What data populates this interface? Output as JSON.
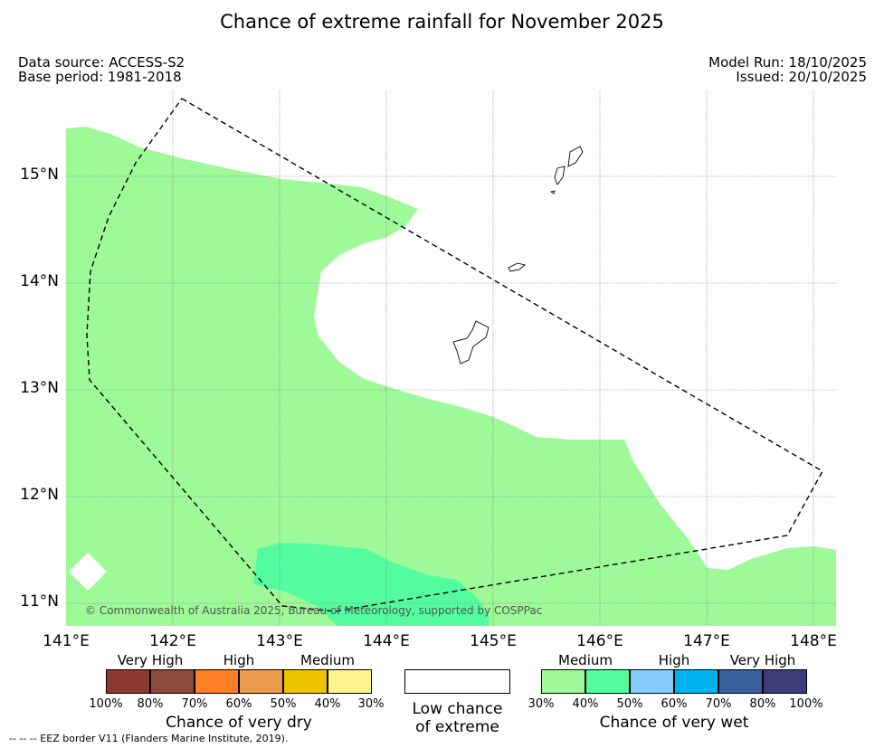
{
  "title": "Chance of extreme rainfall for November 2025",
  "meta": {
    "data_source": "Data source: ACCESS-S2",
    "base_period": "Base period: 1981-2018",
    "model_run": "Model Run: 18/10/2025",
    "issued": "Issued: 20/10/2025"
  },
  "map": {
    "lat_labels": [
      "15°N",
      "14°N",
      "13°N",
      "12°N",
      "11°N"
    ],
    "lon_labels": [
      "141°E",
      "142°E",
      "143°E",
      "144°E",
      "145°E",
      "146°E",
      "147°E",
      "148°E"
    ],
    "copyright": "© Commonwealth of Australia 2025, Bureau of Meteorology, supported by COSPPac",
    "colors": {
      "medium_wet": "#9ef998",
      "high_wet_50": "#54fca0",
      "low": "#ffffff"
    }
  },
  "legend": {
    "dry": {
      "headings": [
        "Very High",
        "High",
        "Medium"
      ],
      "percents": [
        "100%",
        "80%",
        "70%",
        "60%",
        "50%",
        "40%",
        "30%"
      ],
      "colors": [
        "#8b3a32",
        "#8b4b3b",
        "#ff7f27",
        "#eb9a4e",
        "#eec300",
        "#fef48d"
      ],
      "title": "Chance of very dry"
    },
    "low": {
      "label": "Low chance of extreme"
    },
    "wet": {
      "headings": [
        "Medium",
        "High",
        "Very High"
      ],
      "percents": [
        "30%",
        "40%",
        "50%",
        "60%",
        "70%",
        "80%",
        "100%"
      ],
      "colors": [
        "#9ef998",
        "#54fca0",
        "#82cbfb",
        "#00b3ee",
        "#3a5f9d",
        "#3e3c78"
      ],
      "title": "Chance of very wet"
    }
  },
  "footnote": "--  --  -- EEZ border V11 (Flanders Marine Institute, 2019)."
}
